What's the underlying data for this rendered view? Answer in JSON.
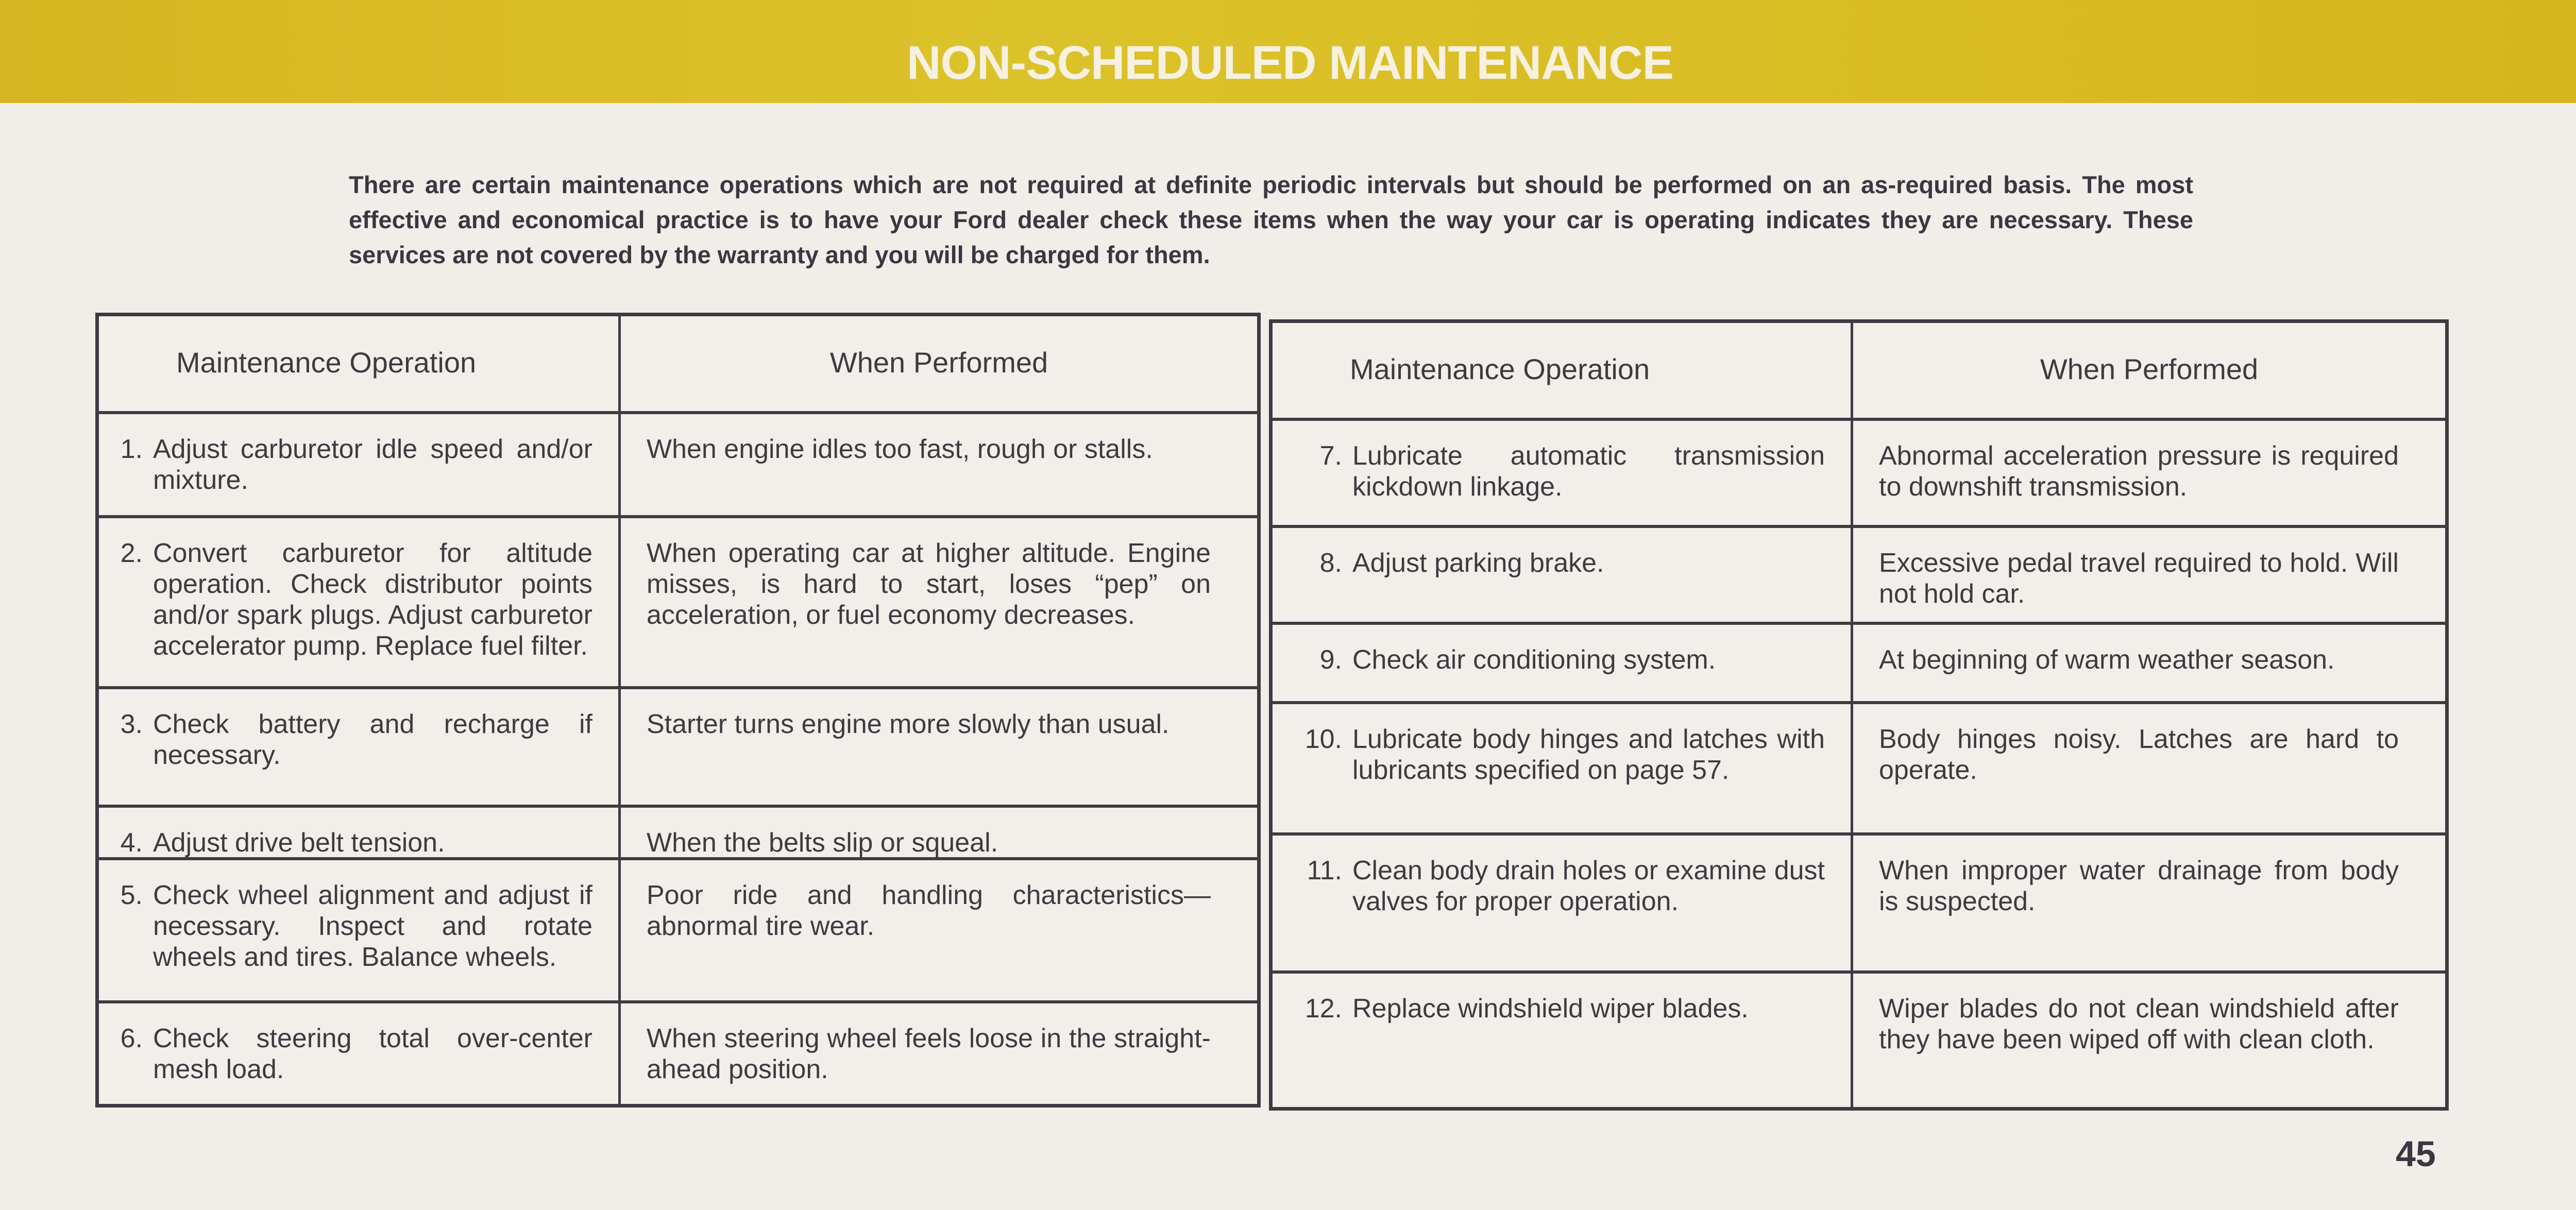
{
  "header": {
    "title": "NON-SCHEDULED  MAINTENANCE",
    "band_color": "#d9b820"
  },
  "intro": "There are certain maintenance operations which are not required at definite periodic intervals but should be performed on an as-required basis. The most effective and economical practice is to have your Ford dealer check these items when the way your car is operating indicates they are necessary. These services are not covered by the warranty and you will be charged for them.",
  "tables": [
    {
      "columns": [
        "Maintenance Operation",
        "When Performed"
      ],
      "rows": [
        {
          "number": "1.",
          "operation": "Adjust carburetor idle speed and/or mixture.",
          "when": "When engine idles too fast, rough or stalls."
        },
        {
          "number": "2.",
          "operation": "Convert carburetor for altitude operation. Check distributor points and/or spark plugs. Adjust carburetor accelerator pump. Replace fuel filter.",
          "when": "When operating car at higher altitude. Engine misses, is hard to start, loses “pep” on acceleration, or fuel economy decreases."
        },
        {
          "number": "3.",
          "operation": "Check battery and recharge if necessary.",
          "when": "Starter turns engine more slowly than usual."
        },
        {
          "number": "4.",
          "operation": "Adjust drive belt tension.",
          "when": "When the belts slip or squeal."
        },
        {
          "number": "5.",
          "operation": "Check wheel alignment and adjust if necessary. Inspect and rotate wheels and tires. Balance wheels.",
          "when": "Poor ride and handling characteristics—abnormal tire wear."
        },
        {
          "number": "6.",
          "operation": "Check steering total over-center mesh load.",
          "when": "When steering wheel feels loose in the straight-ahead position."
        }
      ]
    },
    {
      "columns": [
        "Maintenance Operation",
        "When Performed"
      ],
      "rows": [
        {
          "number": "7.",
          "operation": "Lubricate automatic transmission kickdown linkage.",
          "when": "Abnormal acceleration pressure is required to downshift transmission."
        },
        {
          "number": "8.",
          "operation": "Adjust parking brake.",
          "when": "Excessive pedal travel required to hold. Will not hold car."
        },
        {
          "number": "9.",
          "operation": "Check air conditioning system.",
          "when": "At beginning of warm weather season."
        },
        {
          "number": "10.",
          "operation": "Lubricate body hinges and latches with lubricants specified on page 57.",
          "when": "Body hinges noisy. Latches are hard to operate."
        },
        {
          "number": "11.",
          "operation": "Clean body drain holes or examine dust valves for proper operation.",
          "when": "When improper water drainage from body is suspected."
        },
        {
          "number": "12.",
          "operation": "Replace windshield wiper blades.",
          "when": "Wiper blades do not clean windshield after they have been wiped off with clean cloth."
        }
      ]
    }
  ],
  "page_number": "45"
}
